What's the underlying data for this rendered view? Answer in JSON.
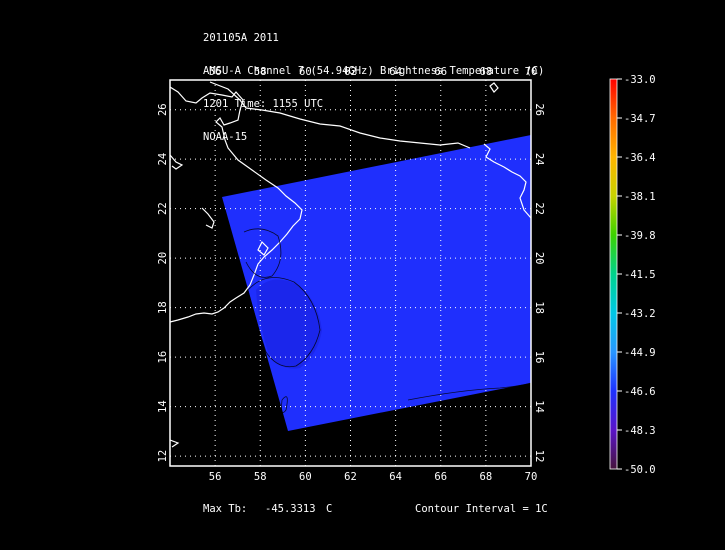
{
  "header": {
    "line1": "201105A 2011",
    "line2": "AMSU-A Channel 7 (54.94GHz) Brightness Temperature (C)",
    "line3": "1201 Time: 1155 UTC",
    "line4": "NOAA-15"
  },
  "map": {
    "lon_ticks": [
      "56",
      "58",
      "60",
      "62",
      "64",
      "66",
      "68",
      "70"
    ],
    "lat_ticks": [
      "12",
      "14",
      "16",
      "18",
      "20",
      "22",
      "24",
      "26"
    ],
    "lon_range": [
      54,
      70
    ],
    "lat_range": [
      11.6,
      27.2
    ],
    "grid": "dotted",
    "swath_color": "#1e2fff"
  },
  "colorbar": {
    "labels": [
      "-33.0",
      "-34.7",
      "-36.4",
      "-38.1",
      "-39.8",
      "-41.5",
      "-43.2",
      "-44.9",
      "-46.6",
      "-48.3",
      "-50.0"
    ],
    "colors": [
      "#ff0000",
      "#ff6a00",
      "#ffb400",
      "#c8d200",
      "#3cd200",
      "#00d28c",
      "#00c8e6",
      "#2896ff",
      "#1e32ff",
      "#5a14c8",
      "#46143c"
    ]
  },
  "footer": {
    "max_tb_label": "Max Tb:",
    "max_tb_value": "-45.3313",
    "max_tb_unit": "C",
    "contour_interval": "Contour Interval = 1C"
  }
}
